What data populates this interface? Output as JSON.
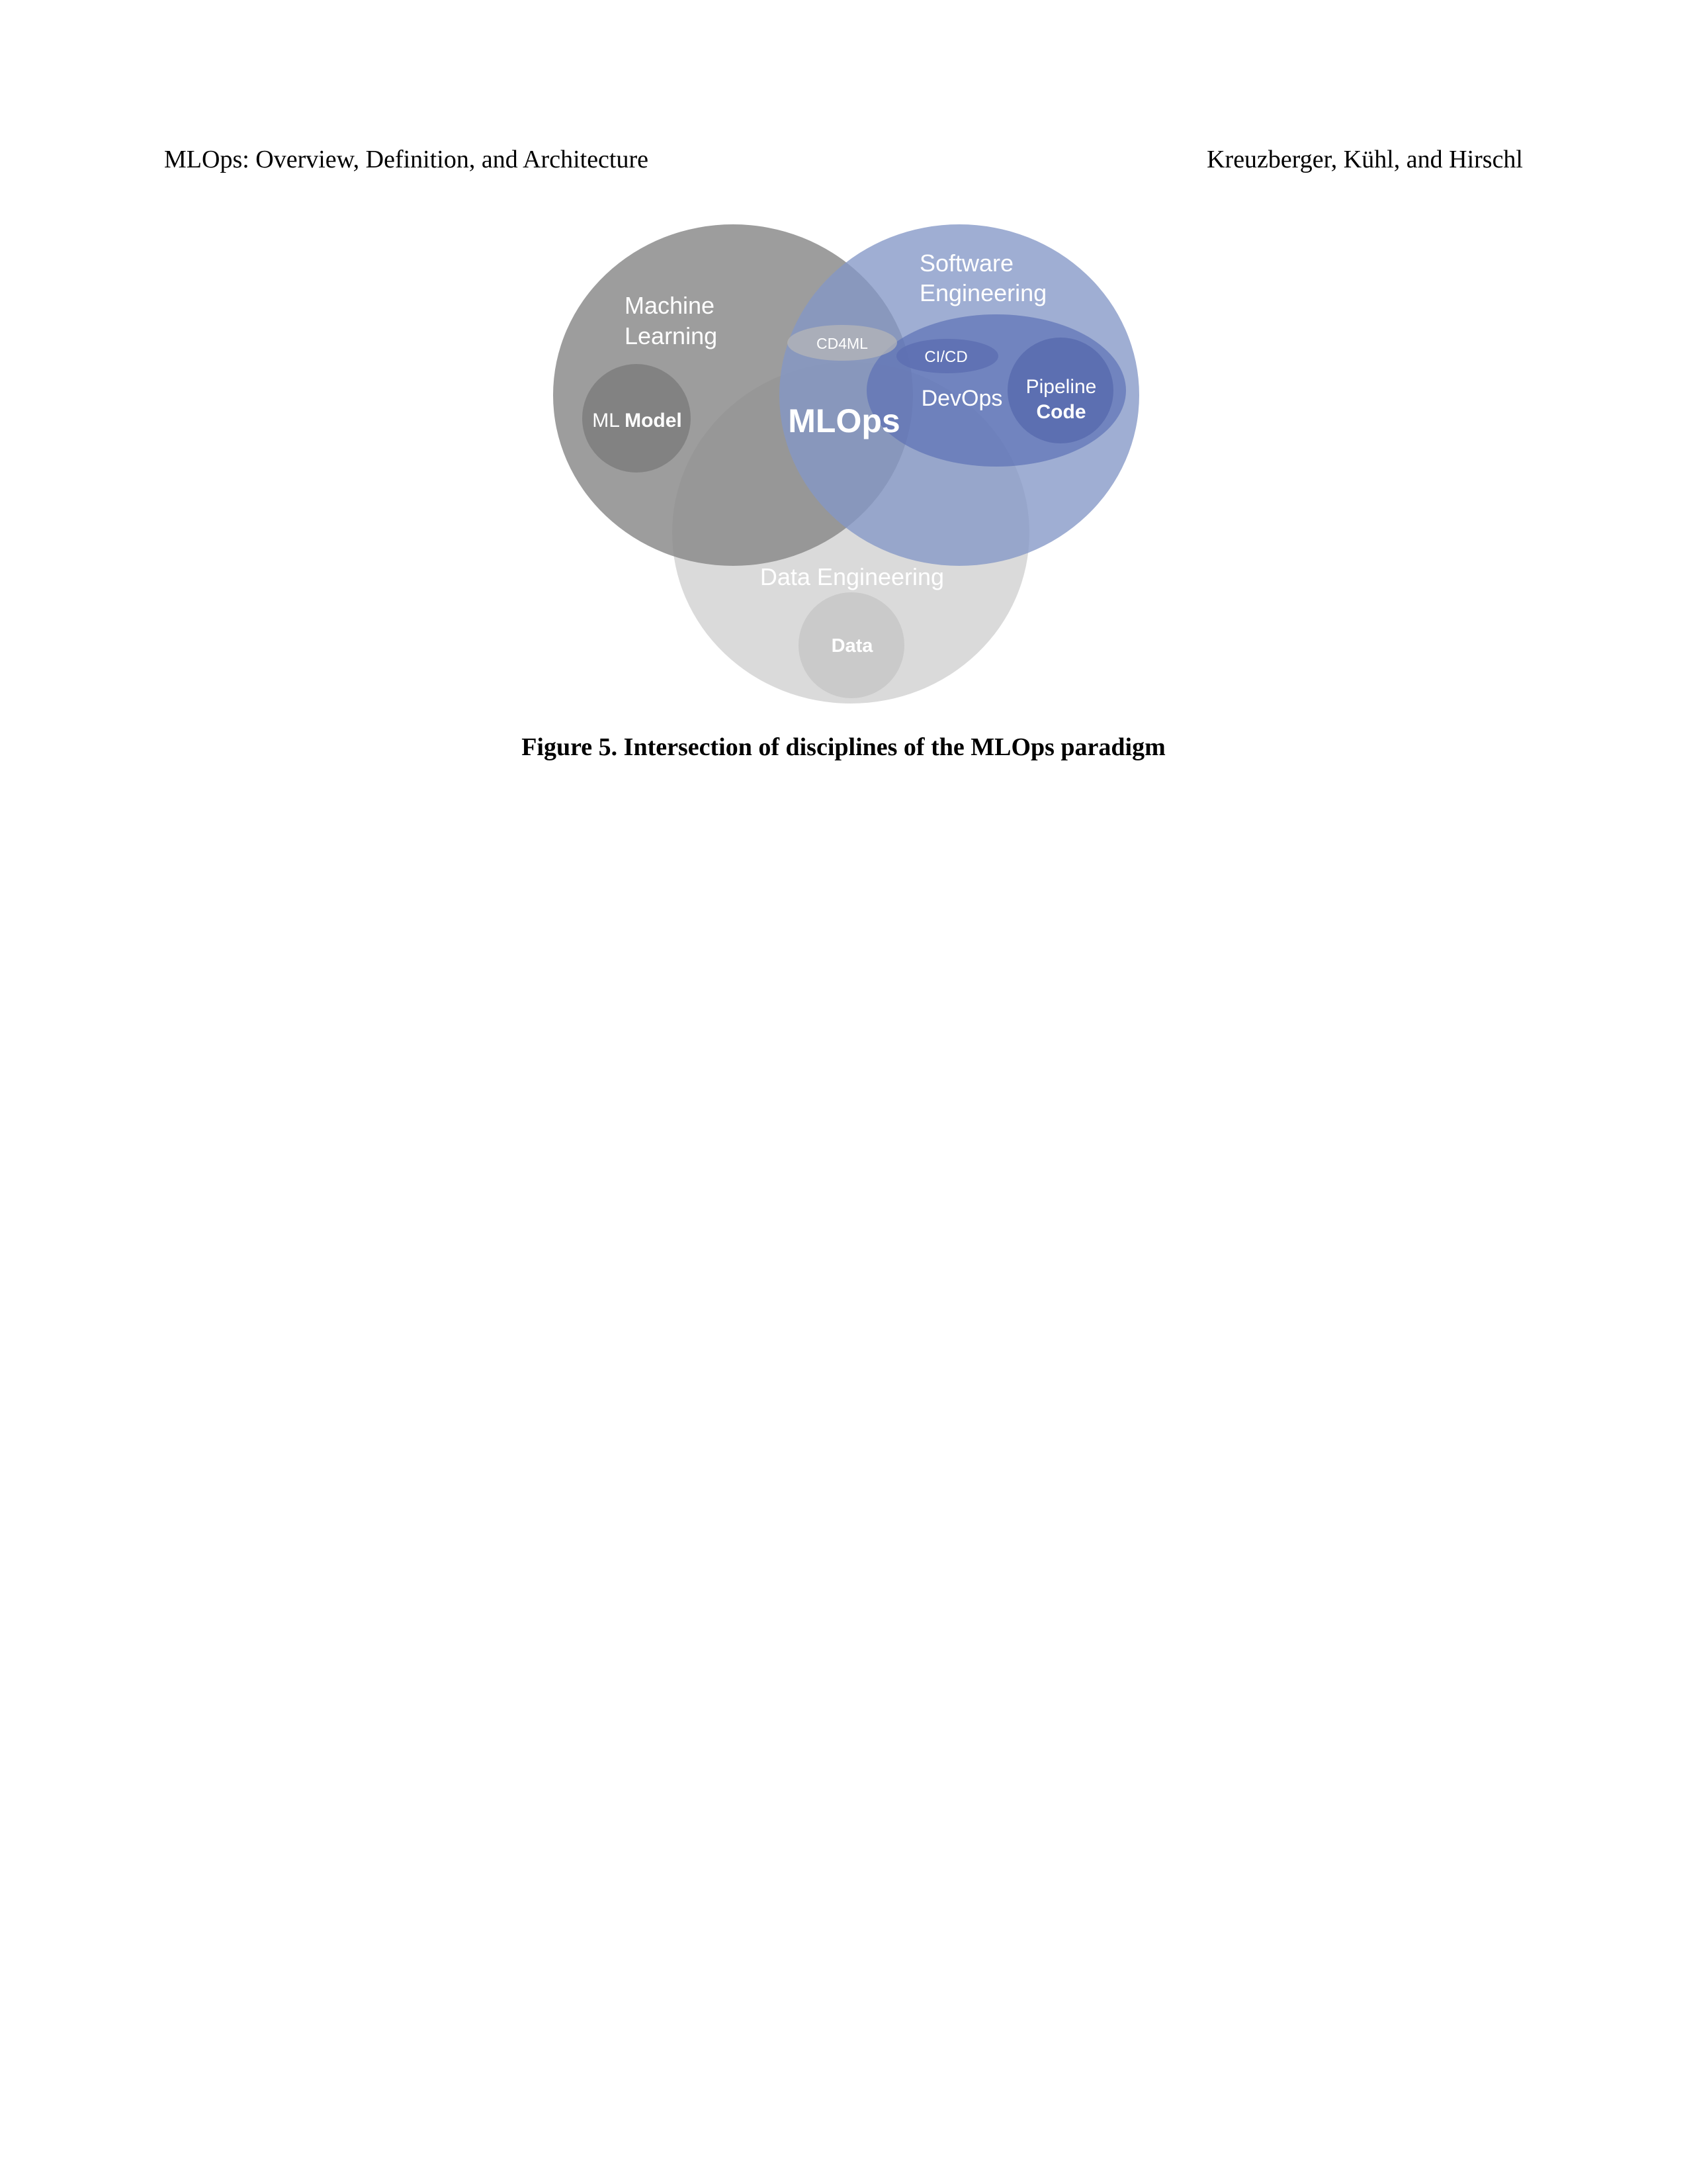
{
  "header": {
    "left": "MLOps: Overview, Definition, and Architecture",
    "right": "Kreuzberger, Kühl, and Hirschl"
  },
  "figure": {
    "labels": {
      "ml_line1": "Machine",
      "ml_line2": "Learning",
      "se_line1": "Software",
      "se_line2": "Engineering",
      "de": "Data Engineering",
      "mlops": "MLOps",
      "devops": "DevOps",
      "cd4ml": "CD4ML",
      "cicd": "CI/CD",
      "ml_model_prefix": "ML",
      "ml_model_bold": "Model",
      "pipeline_line1": "Pipeline",
      "pipeline_line2": "Code",
      "data": "Data"
    },
    "colors": {
      "machine_learning": "#8e8e8e",
      "software_engineering": "#8799c8",
      "data_engineering": "#d4d4d4",
      "devops": "#6276b8",
      "label_text": "#ffffff"
    }
  },
  "caption": "Figure 5. Intersection of disciplines of the MLOps paradigm"
}
